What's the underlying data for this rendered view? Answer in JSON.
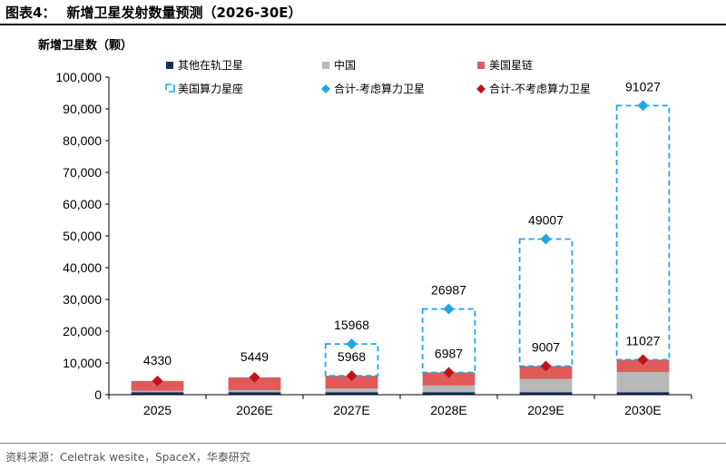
{
  "figure": {
    "number": "图表4：",
    "title": "新增卫星发射数量预测（2026-30E）",
    "source": "资料来源：Celetrak wesite，SpaceX，华泰研究"
  },
  "colors": {
    "other": "#14305e",
    "china": "#b8b8b8",
    "starlink": "#e05a5a",
    "compute": "#1fa7e6",
    "total_with": "#1fa7e6",
    "total_without": "#c0141c"
  },
  "chart_data": {
    "type": "bar",
    "stacked": true,
    "ylabel": "新增卫星数（颗）",
    "ylim": [
      0,
      100000
    ],
    "yticks": [
      0,
      10000,
      20000,
      30000,
      40000,
      50000,
      60000,
      70000,
      80000,
      90000,
      100000
    ],
    "ytick_labels": [
      "0",
      "10,000",
      "20,000",
      "30,000",
      "40,000",
      "50,000",
      "60,000",
      "70,000",
      "80,000",
      "90,000",
      "100,000"
    ],
    "categories": [
      "2025",
      "2026E",
      "2027E",
      "2028E",
      "2029E",
      "2030E"
    ],
    "series": [
      {
        "key": "other",
        "name": "其他在轨卫星",
        "kind": "bar",
        "values": [
          800,
          800,
          800,
          800,
          800,
          800
        ]
      },
      {
        "key": "china",
        "name": "中国",
        "kind": "bar",
        "values": [
          430,
          650,
          1150,
          2100,
          4200,
          6300
        ]
      },
      {
        "key": "starlink",
        "name": "美国星链",
        "kind": "bar",
        "values": [
          3100,
          3999,
          4018,
          4087,
          4007,
          3927
        ]
      },
      {
        "key": "compute",
        "name": "美国算力星座",
        "kind": "dashed-bar",
        "values": [
          0,
          0,
          10000,
          20000,
          40000,
          80000
        ]
      },
      {
        "key": "total_with",
        "name": "合计-考虑算力卫星",
        "kind": "marker",
        "values": [
          4330,
          5449,
          15968,
          26987,
          49007,
          91027
        ]
      },
      {
        "key": "total_without",
        "name": "合计-不考虑算力卫星",
        "kind": "marker",
        "values": [
          4330,
          5449,
          5968,
          6987,
          9007,
          11027
        ]
      }
    ],
    "data_labels": [
      [
        "4330"
      ],
      [
        "5449"
      ],
      [
        "15968",
        "5968"
      ],
      [
        "26987",
        "6987"
      ],
      [
        "49007",
        "9007"
      ],
      [
        "91027",
        "11027"
      ]
    ],
    "legend_position": "top"
  }
}
